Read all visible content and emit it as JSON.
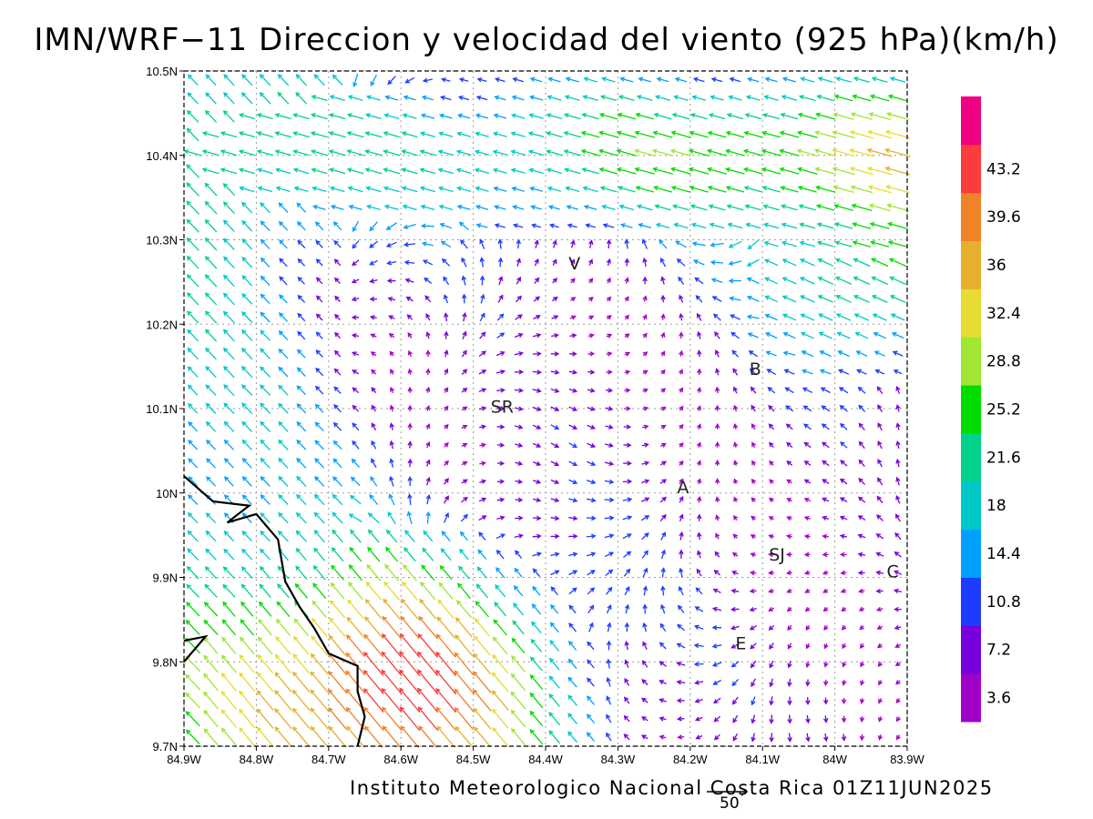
{
  "title": "IMN/WRF−11 Direccion y velocidad del viento (925 hPa)(km/h)",
  "credit": "Instituto Meteorologico Nacional Costa Rica 01Z11JUN2025",
  "reference_vector": {
    "value": 50,
    "label": "50"
  },
  "axes": {
    "x_ticks": [
      "84.9W",
      "84.8W",
      "84.7W",
      "84.6W",
      "84.5W",
      "84.4W",
      "84.3W",
      "84.2W",
      "84.1W",
      "84W",
      "83.9W"
    ],
    "y_ticks": [
      "9.7N",
      "9.8N",
      "9.9N",
      "10N",
      "10.1N",
      "10.2N",
      "10.3N",
      "10.4N",
      "10.5N"
    ],
    "lon_range": [
      -84.9,
      -83.9
    ],
    "lat_range": [
      9.7,
      10.5
    ]
  },
  "places": [
    {
      "label": "V",
      "lon": -84.36,
      "lat": 10.265
    },
    {
      "label": "B",
      "lon": -84.11,
      "lat": 10.14
    },
    {
      "label": "SR",
      "lon": -84.46,
      "lat": 10.095
    },
    {
      "label": "A",
      "lon": -84.21,
      "lat": 10.0
    },
    {
      "label": "SJ",
      "lon": -84.08,
      "lat": 9.92
    },
    {
      "label": "C",
      "lon": -83.92,
      "lat": 9.9
    },
    {
      "label": "E",
      "lon": -84.13,
      "lat": 9.815
    }
  ],
  "colorbar": {
    "labels": [
      "3.6",
      "7.2",
      "10.8",
      "14.4",
      "18",
      "21.6",
      "25.2",
      "28.8",
      "32.4",
      "36",
      "39.6",
      "43.2"
    ],
    "colors": [
      "#a000c8",
      "#7800dc",
      "#1e3cff",
      "#00a0ff",
      "#00c8c8",
      "#00d28c",
      "#00dc00",
      "#a0e632",
      "#e6dc32",
      "#e6af2d",
      "#f08228",
      "#fa3c3c",
      "#f00082"
    ]
  },
  "chart_data": {
    "type": "vector-field",
    "title": "IMN/WRF−11 Direccion y velocidad del viento (925 hPa)(km/h)",
    "units": "km/h",
    "lon_range": [
      -84.9,
      -83.9
    ],
    "lat_range": [
      9.7,
      10.5
    ],
    "coastline": [
      [
        -84.9,
        10.02
      ],
      [
        -84.86,
        9.99
      ],
      [
        -84.81,
        9.985
      ],
      [
        -84.84,
        9.965
      ],
      [
        -84.8,
        9.975
      ],
      [
        -84.77,
        9.945
      ],
      [
        -84.76,
        9.895
      ],
      [
        -84.74,
        9.865
      ],
      [
        -84.72,
        9.84
      ],
      [
        -84.7,
        9.81
      ],
      [
        -84.66,
        9.795
      ],
      [
        -84.66,
        9.765
      ],
      [
        -84.65,
        9.735
      ],
      [
        -84.66,
        9.7
      ]
    ],
    "coastline_west": [
      [
        -84.9,
        9.825
      ],
      [
        -84.87,
        9.83
      ],
      [
        -84.9,
        9.8
      ]
    ],
    "wind_regions": [
      {
        "name": "southwest-onshore-jet",
        "lon_range": [
          -84.75,
          -84.35
        ],
        "lat_range": [
          9.7,
          9.9
        ],
        "direction_deg_from": 140,
        "speed_kmh": [
          28,
          46
        ]
      },
      {
        "name": "north-easterly-band",
        "lon_range": [
          -84.6,
          -83.9
        ],
        "lat_range": [
          10.35,
          10.5
        ],
        "direction_deg_from": 80,
        "speed_kmh": [
          14,
          28
        ]
      },
      {
        "name": "west-coastal-flow",
        "lon_range": [
          -84.9,
          -84.65
        ],
        "lat_range": [
          9.7,
          10.2
        ],
        "direction_deg_from": 140,
        "speed_kmh": [
          14,
          25
        ]
      },
      {
        "name": "central-valley-calm",
        "lon_range": [
          -84.5,
          -84.0
        ],
        "lat_range": [
          9.85,
          10.3
        ],
        "direction_deg_from": 20,
        "speed_kmh": [
          2,
          9
        ]
      },
      {
        "name": "northeast-corner-stream",
        "lon_range": [
          -84.1,
          -83.9
        ],
        "lat_range": [
          10.2,
          10.35
        ],
        "direction_deg_from": 70,
        "speed_kmh": [
          18,
          30
        ]
      }
    ]
  }
}
